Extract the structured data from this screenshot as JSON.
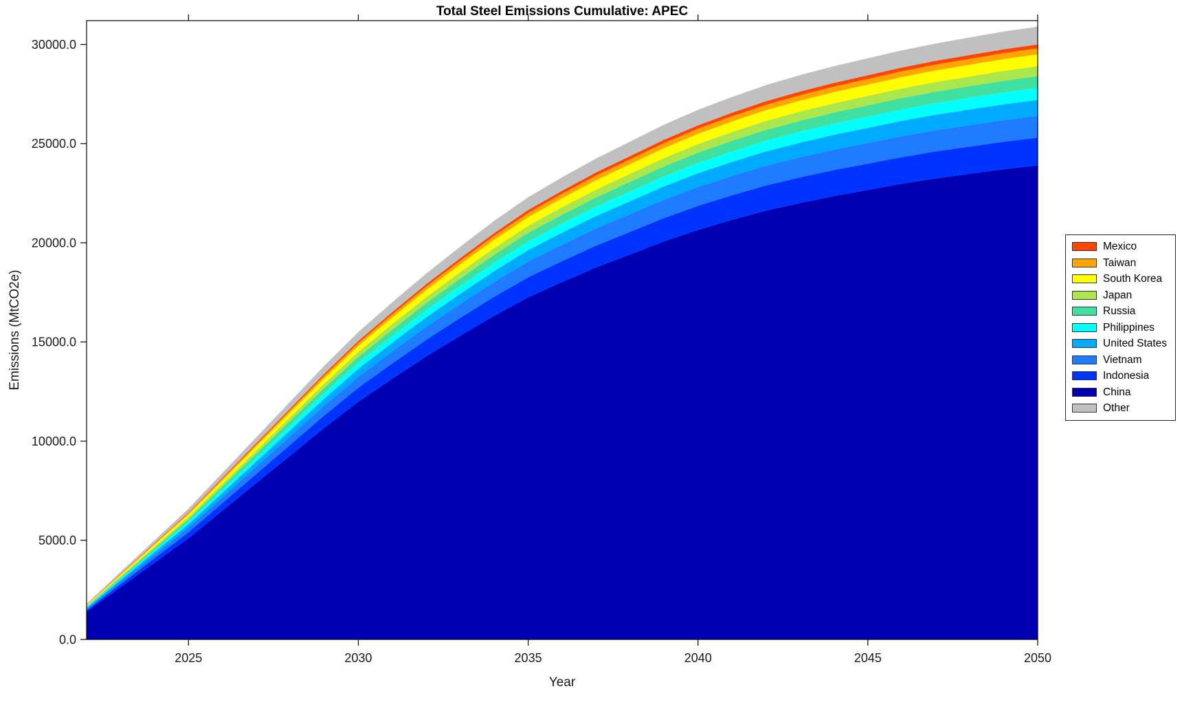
{
  "chart_data": {
    "type": "area",
    "stacked": true,
    "title": "Total Steel Emissions Cumulative: APEC",
    "xlabel": "Year",
    "ylabel": "Emissions (MtCO2e)",
    "xlim": [
      2022,
      2050
    ],
    "ylim": [
      0,
      31200
    ],
    "grid": false,
    "xticks": [
      2025,
      2030,
      2035,
      2040,
      2045,
      2050
    ],
    "xtick_labels": [
      "2025",
      "2030",
      "2035",
      "2040",
      "2045",
      "2050"
    ],
    "yticks": [
      0,
      5000,
      10000,
      15000,
      20000,
      25000,
      30000
    ],
    "ytick_labels": [
      "0.0",
      "5000.0",
      "10000.0",
      "15000.0",
      "20000.0",
      "25000.0",
      "30000.0"
    ],
    "years": [
      2022,
      2023,
      2024,
      2025,
      2026,
      2027,
      2028,
      2029,
      2030,
      2031,
      2032,
      2033,
      2034,
      2035,
      2036,
      2037,
      2038,
      2039,
      2040,
      2041,
      2042,
      2043,
      2044,
      2045,
      2046,
      2047,
      2048,
      2049,
      2050
    ],
    "totals_cumulative": [
      1800,
      3400,
      5000,
      6600,
      8400,
      10200,
      12000,
      13800,
      15500,
      17000,
      18450,
      19800,
      21100,
      22300,
      23300,
      24250,
      25100,
      25950,
      26700,
      27350,
      27950,
      28450,
      28900,
      29300,
      29700,
      30050,
      30350,
      30650,
      30900
    ],
    "series": [
      {
        "name": "China",
        "color": "#0000b2",
        "share": 0.7735,
        "cumulative_2050": 23900
      },
      {
        "name": "Indonesia",
        "color": "#0033ff",
        "share": 0.0453,
        "cumulative_2050": 1400
      },
      {
        "name": "Vietnam",
        "color": "#1f7bff",
        "share": 0.0356,
        "cumulative_2050": 1100
      },
      {
        "name": "United States",
        "color": "#00aaff",
        "share": 0.0259,
        "cumulative_2050": 800
      },
      {
        "name": "Philippines",
        "color": "#00ffff",
        "share": 0.0194,
        "cumulative_2050": 600
      },
      {
        "name": "Russia",
        "color": "#40e0a0",
        "share": 0.0194,
        "cumulative_2050": 600
      },
      {
        "name": "Japan",
        "color": "#aae64c",
        "share": 0.0162,
        "cumulative_2050": 500
      },
      {
        "name": "South Korea",
        "color": "#ffff00",
        "share": 0.0194,
        "cumulative_2050": 600
      },
      {
        "name": "Taiwan",
        "color": "#ffa600",
        "share": 0.0097,
        "cumulative_2050": 300
      },
      {
        "name": "Mexico",
        "color": "#ff4500",
        "share": 0.0065,
        "cumulative_2050": 200
      },
      {
        "name": "Other",
        "color": "#c0c0c0",
        "share": 0.0291,
        "cumulative_2050": 900
      }
    ],
    "legend": {
      "position": "right-outside",
      "entries": [
        "Mexico",
        "Taiwan",
        "South Korea",
        "Japan",
        "Russia",
        "Philippines",
        "United States",
        "Vietnam",
        "Indonesia",
        "China",
        "Other"
      ]
    }
  }
}
